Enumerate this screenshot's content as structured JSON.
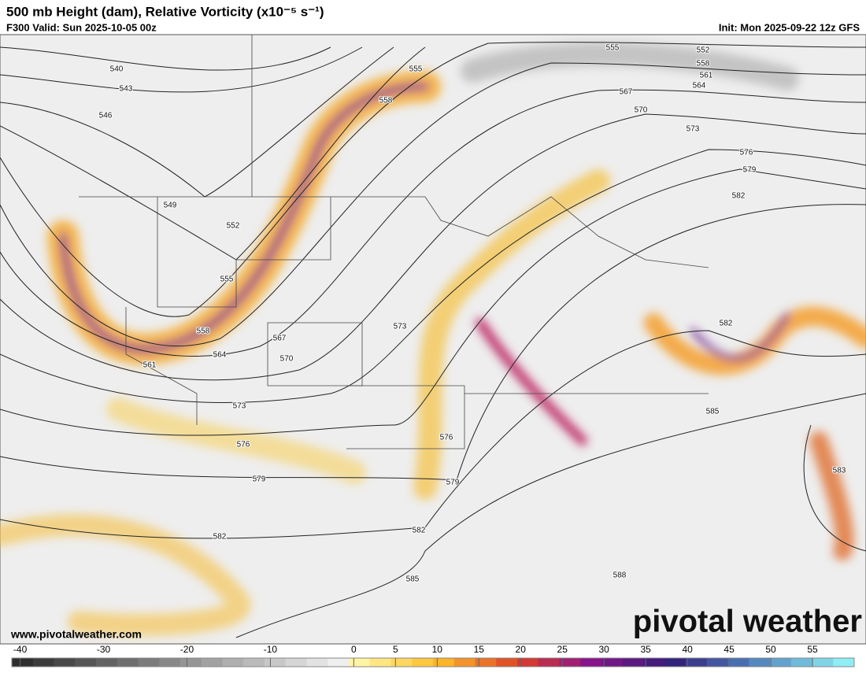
{
  "header": {
    "title": "500 mb Height (dam), Relative Vorticity (x10⁻⁵ s⁻¹)",
    "valid": "F300 Valid: Sun 2025-10-05 00z",
    "init": "Init: Mon 2025-09-22 12z GFS"
  },
  "contour_labels": [
    "540",
    "543",
    "546",
    "549",
    "552",
    "555",
    "558",
    "561",
    "564",
    "567",
    "570",
    "573",
    "576",
    "579",
    "582",
    "585",
    "582",
    "579",
    "576",
    "573",
    "555",
    "558",
    "555",
    "552",
    "558",
    "561",
    "564",
    "567",
    "570",
    "573",
    "576",
    "579",
    "582",
    "582",
    "585",
    "583",
    "588"
  ],
  "footer": {
    "website": "www.pivotalweather.com",
    "logo": "pivotal weather"
  },
  "colorbar": {
    "range": [
      -41,
      60
    ],
    "ticks": [
      -40,
      -30,
      -20,
      -10,
      0,
      5,
      10,
      15,
      20,
      25,
      30,
      35,
      40,
      45,
      50,
      55
    ]
  }
}
